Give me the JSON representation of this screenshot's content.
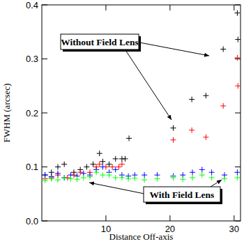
{
  "chart_data": {
    "type": "scatter",
    "xlabel": "Distance Off-axis",
    "ylabel": "FWHM (arcsec)",
    "xlim": [
      0,
      31
    ],
    "ylim": [
      0,
      0.4
    ],
    "xticks": [
      10,
      20,
      30
    ],
    "yticks": [
      {
        "value": 0,
        "label": "0.0"
      },
      0.1,
      0.2,
      0.3,
      0.4
    ],
    "annotations": [
      {
        "text": "Without Field Lens"
      },
      {
        "text": "With Field Lens"
      }
    ],
    "series": [
      {
        "color": "#000000",
        "marker": "plus",
        "x": [
          0.5,
          1.5,
          2.5,
          3.5,
          5,
          6,
          7,
          8,
          9,
          9.5,
          10.5,
          11.5,
          12.5,
          13,
          13.6,
          20.5,
          23.4,
          25.6,
          28.3,
          30.5,
          30.6
        ],
        "values": [
          0.085,
          0.09,
          0.1,
          0.105,
          0.09,
          0.095,
          0.1,
          0.105,
          0.125,
          0.11,
          0.105,
          0.115,
          0.115,
          0.115,
          0.153,
          0.172,
          0.225,
          0.232,
          0.318,
          0.385,
          0.336
        ]
      },
      {
        "color": "#ff0000",
        "marker": "plus",
        "x": [
          0.5,
          1.5,
          2.5,
          4,
          5,
          6,
          7.5,
          8.5,
          9,
          10,
          11,
          12,
          12.5,
          20.5,
          23.4,
          25.6,
          28.3,
          30.5,
          30.6
        ],
        "values": [
          0.078,
          0.08,
          0.085,
          0.08,
          0.085,
          0.09,
          0.09,
          0.1,
          0.105,
          0.1,
          0.1,
          0.1,
          0.105,
          0.15,
          0.168,
          0.155,
          0.213,
          0.302,
          0.25
        ]
      },
      {
        "color": "#0000ff",
        "marker": "plus",
        "x": [
          0.5,
          1.5,
          2.5,
          3.5,
          4.5,
          5.5,
          6.5,
          7.5,
          8.5,
          9.5,
          10.5,
          11.5,
          12.5,
          13.5,
          14.5,
          16,
          18,
          20.5,
          22,
          23.5,
          25,
          26.5,
          28.5,
          30.5
        ],
        "values": [
          0.085,
          0.082,
          0.088,
          0.08,
          0.085,
          0.083,
          0.088,
          0.085,
          0.095,
          0.1,
          0.09,
          0.095,
          0.085,
          0.083,
          0.085,
          0.085,
          0.085,
          0.083,
          0.085,
          0.09,
          0.095,
          0.09,
          0.085,
          0.09
        ]
      },
      {
        "color": "#00ff00",
        "marker": "plus",
        "x": [
          0.5,
          1.5,
          2.5,
          3.5,
          4.5,
          5.5,
          6.5,
          7.5,
          8.5,
          9.5,
          10.5,
          11.5,
          12.5,
          13.5,
          14.5,
          16,
          18,
          20.5,
          22,
          23.5,
          25,
          26.5,
          28.5,
          30.5
        ],
        "values": [
          0.075,
          0.078,
          0.076,
          0.08,
          0.078,
          0.077,
          0.08,
          0.082,
          0.09,
          0.085,
          0.085,
          0.08,
          0.08,
          0.078,
          0.079,
          0.076,
          0.078,
          0.08,
          0.077,
          0.08,
          0.085,
          0.08,
          0.078,
          0.08
        ]
      }
    ]
  }
}
